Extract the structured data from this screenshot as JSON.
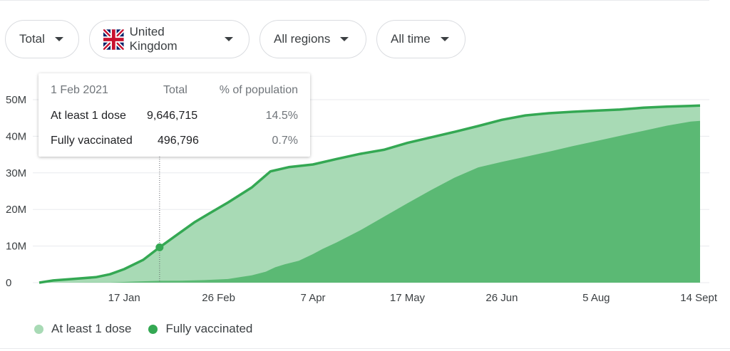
{
  "filters": {
    "metric": "Total",
    "country": "United Kingdom",
    "region": "All regions",
    "period": "All time"
  },
  "tooltip": {
    "date": "1 Feb 2021",
    "col_total": "Total",
    "col_pct": "% of population",
    "rows": [
      {
        "label": "At least 1 dose",
        "total": "9,646,715",
        "pct": "14.5%"
      },
      {
        "label": "Fully vaccinated",
        "total": "496,796",
        "pct": "0.7%"
      }
    ]
  },
  "colors": {
    "dose1_area": "#a8dab5",
    "dose1_line": "#34a853",
    "full_area": "#5bb974",
    "grid": "#e8eaed"
  },
  "chart_data": {
    "type": "area",
    "title": "",
    "xlabel": "",
    "ylabel": "",
    "ylim": [
      0,
      50000000
    ],
    "y_ticks": [
      {
        "value": 0,
        "label": "0"
      },
      {
        "value": 10000000,
        "label": "10M"
      },
      {
        "value": 20000000,
        "label": "20M"
      },
      {
        "value": 30000000,
        "label": "30M"
      },
      {
        "value": 40000000,
        "label": "40M"
      },
      {
        "value": 50000000,
        "label": "50M"
      }
    ],
    "x_range_days": [
      0,
      280
    ],
    "x_ticks": [
      {
        "day": 36,
        "label": "17 Jan"
      },
      {
        "day": 76,
        "label": "26 Feb"
      },
      {
        "day": 116,
        "label": "7 Apr"
      },
      {
        "day": 156,
        "label": "17 May"
      },
      {
        "day": 196,
        "label": "26 Jun"
      },
      {
        "day": 236,
        "label": "5 Aug"
      },
      {
        "day": 276,
        "label": "14 Sept"
      }
    ],
    "highlight": {
      "day": 51,
      "value": 9646715
    },
    "series": [
      {
        "name": "At least 1 dose",
        "points": [
          [
            0,
            0
          ],
          [
            6,
            600000
          ],
          [
            14,
            1000000
          ],
          [
            24,
            1500000
          ],
          [
            30,
            2300000
          ],
          [
            36,
            3700000
          ],
          [
            44,
            6200000
          ],
          [
            51,
            9646715
          ],
          [
            58,
            12900000
          ],
          [
            66,
            16600000
          ],
          [
            72,
            18900000
          ],
          [
            80,
            21900000
          ],
          [
            90,
            26000000
          ],
          [
            98,
            30400000
          ],
          [
            106,
            31600000
          ],
          [
            116,
            32300000
          ],
          [
            126,
            33800000
          ],
          [
            136,
            35200000
          ],
          [
            146,
            36300000
          ],
          [
            156,
            38200000
          ],
          [
            166,
            39700000
          ],
          [
            176,
            41200000
          ],
          [
            186,
            42800000
          ],
          [
            196,
            44500000
          ],
          [
            206,
            45700000
          ],
          [
            216,
            46300000
          ],
          [
            226,
            46700000
          ],
          [
            236,
            47000000
          ],
          [
            246,
            47300000
          ],
          [
            256,
            47800000
          ],
          [
            266,
            48100000
          ],
          [
            276,
            48300000
          ],
          [
            280,
            48400000
          ]
        ]
      },
      {
        "name": "Fully vaccinated",
        "points": [
          [
            0,
            0
          ],
          [
            30,
            50000
          ],
          [
            40,
            300000
          ],
          [
            51,
            496796
          ],
          [
            60,
            550000
          ],
          [
            70,
            700000
          ],
          [
            80,
            1000000
          ],
          [
            86,
            1600000
          ],
          [
            90,
            2000000
          ],
          [
            96,
            3000000
          ],
          [
            100,
            4200000
          ],
          [
            104,
            5000000
          ],
          [
            110,
            6000000
          ],
          [
            116,
            7800000
          ],
          [
            120,
            9200000
          ],
          [
            126,
            11000000
          ],
          [
            136,
            14300000
          ],
          [
            146,
            18000000
          ],
          [
            156,
            21700000
          ],
          [
            166,
            25300000
          ],
          [
            176,
            28700000
          ],
          [
            186,
            31500000
          ],
          [
            196,
            33000000
          ],
          [
            206,
            34400000
          ],
          [
            216,
            35800000
          ],
          [
            226,
            37300000
          ],
          [
            236,
            38700000
          ],
          [
            246,
            40100000
          ],
          [
            256,
            41500000
          ],
          [
            266,
            42900000
          ],
          [
            276,
            44000000
          ],
          [
            280,
            44200000
          ]
        ]
      }
    ],
    "legend": [
      "At least 1 dose",
      "Fully vaccinated"
    ]
  }
}
